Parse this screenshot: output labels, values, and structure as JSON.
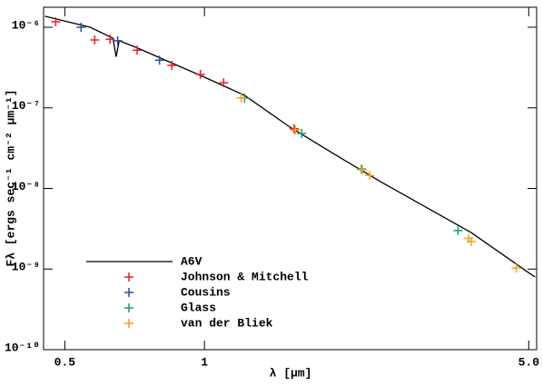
{
  "chart_data": {
    "type": "scatter",
    "x_label": "λ [μm]",
    "y_label": "Fλ [ergs sec⁻¹ cm⁻² μm⁻¹]",
    "xscale": "log",
    "yscale": "log",
    "xlim": [
      0.45,
      5.2
    ],
    "ylim": [
      1e-10,
      1.77e-06
    ],
    "xticks": [
      0.5,
      1,
      {
        "value": 5,
        "label": "5.0"
      }
    ],
    "yticks": [
      {
        "value": 1e-10,
        "label": "10⁻¹⁰"
      },
      {
        "value": 1e-09,
        "label": "10⁻⁹"
      },
      {
        "value": 1e-08,
        "label": "10⁻⁸"
      },
      {
        "value": 1e-07,
        "label": "10⁻⁷"
      },
      {
        "value": 1e-06,
        "label": "10⁻⁶"
      }
    ],
    "legend": "lower left",
    "series": [
      {
        "name": "A6V",
        "type": "line",
        "color": "#000000",
        "x": [
          0.453,
          0.567,
          0.635,
          0.645,
          0.655,
          0.711,
          0.813,
          1.0,
          1.22,
          1.53,
          1.91,
          2.4,
          3.0,
          3.76,
          5.0,
          5.16
        ],
        "values": [
          1.37e-06,
          1e-06,
          7.3e-07,
          4.3e-07,
          6.8e-07,
          5.65e-07,
          4.03e-07,
          2.4e-07,
          1.43e-07,
          5.75e-08,
          2.64e-08,
          1.21e-08,
          5.86e-09,
          2.83e-09,
          9e-10,
          8e-10
        ]
      },
      {
        "name": "Johnson & Mitchell",
        "type": "marker",
        "color": "#e8202e",
        "x": [
          0.478,
          0.58,
          0.626,
          0.716,
          0.85,
          0.98,
          1.1,
          1.56
        ],
        "values": [
          1.17e-06,
          6.95e-07,
          7.1e-07,
          5.2e-07,
          3.36e-07,
          2.6e-07,
          2.05e-07,
          5.5e-08
        ]
      },
      {
        "name": "Cousins",
        "type": "marker",
        "color": "#1f4fb4",
        "x": [
          0.542,
          0.65,
          0.8
        ],
        "values": [
          1e-06,
          6.8e-07,
          3.9e-07
        ]
      },
      {
        "name": "Glass",
        "type": "marker",
        "color": "#1a9e6e",
        "x": [
          1.22,
          1.62,
          2.18,
          3.52
        ],
        "values": [
          1.32e-07,
          4.8e-08,
          1.74e-08,
          3e-09
        ]
      },
      {
        "name": "van der Bliek",
        "type": "marker",
        "color": "#f5a020",
        "x": [
          1.2,
          1.57,
          2.19,
          2.27,
          3.71,
          3.76,
          4.7
        ],
        "values": [
          1.32e-07,
          5.3e-08,
          1.7e-08,
          1.45e-08,
          2.4e-09,
          2.2e-09,
          1.03e-09
        ]
      }
    ]
  }
}
